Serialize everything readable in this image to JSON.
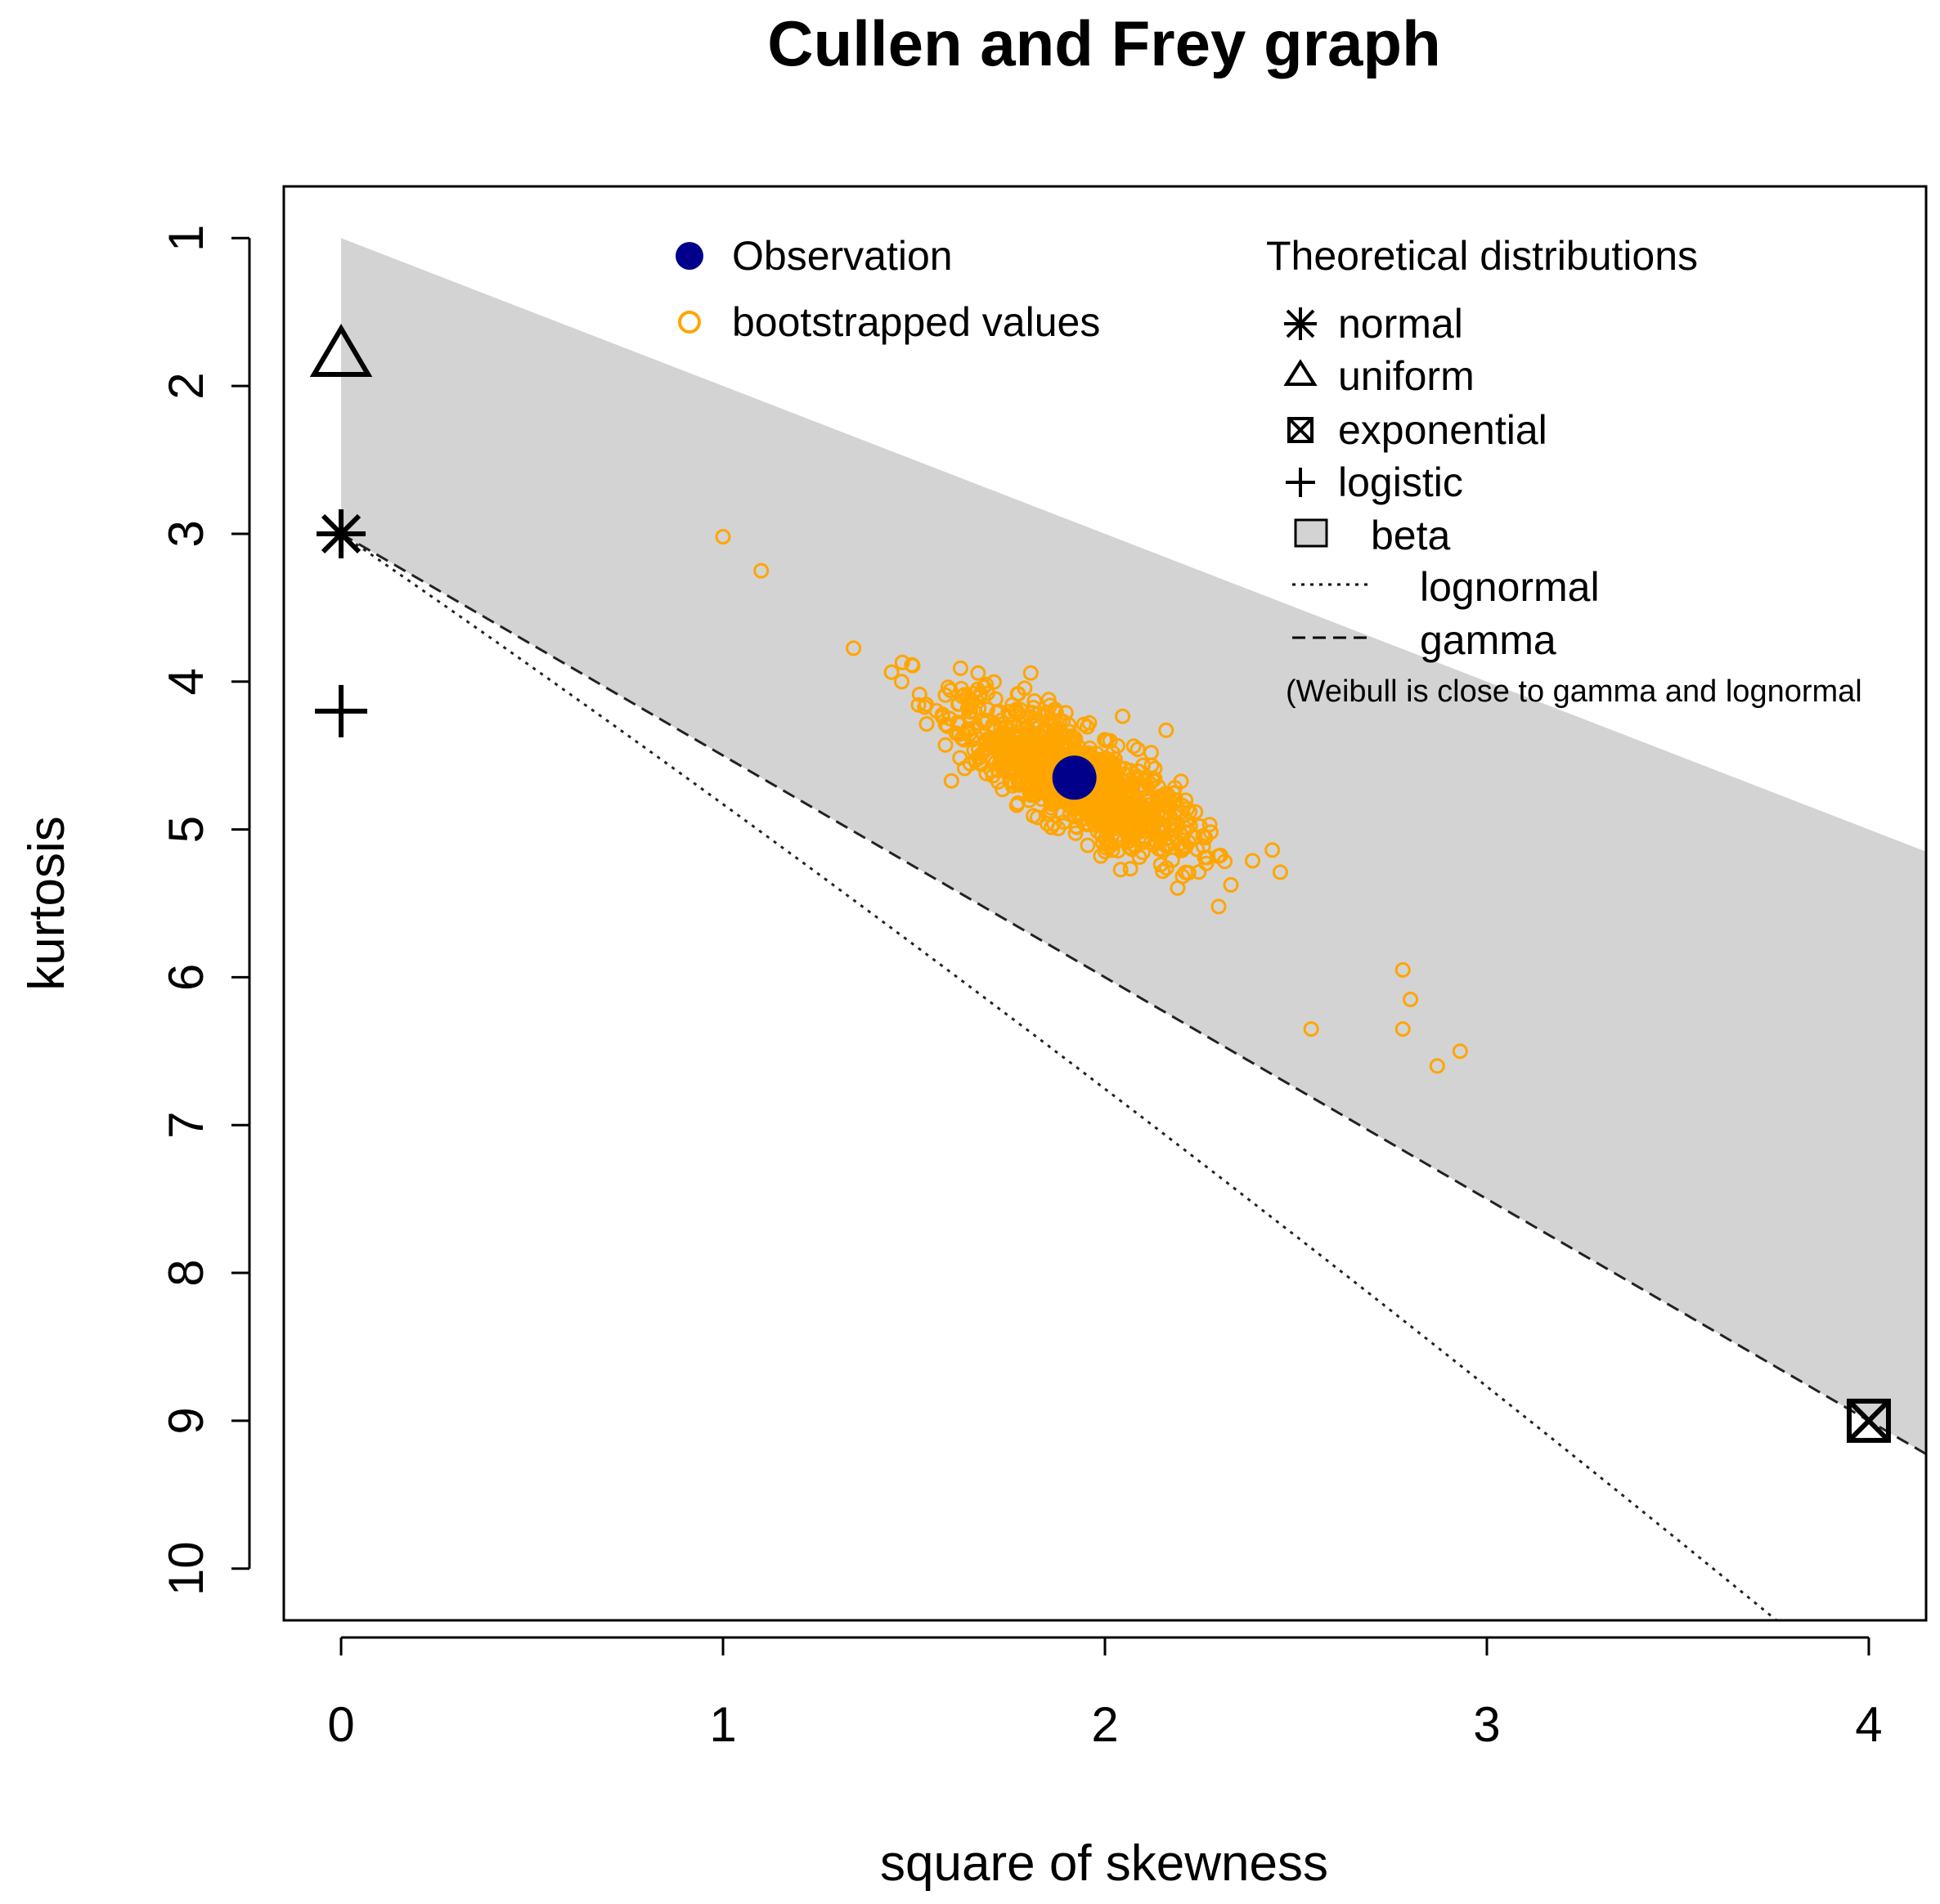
{
  "chart_data": {
    "type": "scatter",
    "title": "Cullen and Frey graph",
    "xlabel": "square of skewness",
    "ylabel": "kurtosis",
    "xlim": [
      -0.15,
      4.15
    ],
    "ylim": [
      10.35,
      0.65
    ],
    "y_axis_reversed": true,
    "x_ticks": [
      0,
      1,
      2,
      3,
      4
    ],
    "y_ticks": [
      1,
      2,
      3,
      4,
      5,
      6,
      7,
      8,
      9,
      10
    ],
    "observation": {
      "label": "Observation",
      "skewness_sq": 1.92,
      "kurtosis": 4.65,
      "color": "#00008b"
    },
    "bootstrap": {
      "label": "bootstrapped values",
      "color": "#ffa500",
      "n_points": 1000,
      "center_skewness_sq": 1.92,
      "center_kurtosis": 4.65,
      "slope": 1.9,
      "spread_along": 0.3,
      "spread_across": 0.09,
      "outliers": [
        [
          1.0,
          3.02
        ],
        [
          1.1,
          3.25
        ],
        [
          2.54,
          6.35
        ],
        [
          2.78,
          6.35
        ],
        [
          2.87,
          6.6
        ],
        [
          2.93,
          6.5
        ],
        [
          2.8,
          6.15
        ],
        [
          2.78,
          5.95
        ]
      ]
    },
    "theoretical_points": [
      {
        "name": "normal",
        "skewness_sq": 0,
        "kurtosis": 3,
        "symbol": "asterisk"
      },
      {
        "name": "uniform",
        "skewness_sq": 0,
        "kurtosis": 1.8,
        "symbol": "triangle"
      },
      {
        "name": "exponential",
        "skewness_sq": 4,
        "kurtosis": 9,
        "symbol": "boxed-x"
      },
      {
        "name": "logistic",
        "skewness_sq": 0,
        "kurtosis": 4.2,
        "symbol": "plus"
      }
    ],
    "beta_region": {
      "name": "beta",
      "lower_bound": "kurtosis = 1 + skewness_sq",
      "upper_bound": "kurtosis = 3 + 1.5 * skewness_sq",
      "color": "#d3d3d3"
    },
    "curves": [
      {
        "name": "lognormal",
        "style": "dotted"
      },
      {
        "name": "gamma",
        "style": "dashed",
        "equation": "kurtosis = 3 + 1.5 * skewness_sq"
      }
    ],
    "legend": {
      "observed_entries": [
        "Observation",
        "bootstrapped values"
      ],
      "theoretical_title": "Theoretical distributions",
      "theoretical_entries": [
        "normal",
        "uniform",
        "exponential",
        "logistic",
        "beta",
        "lognormal",
        "gamma"
      ],
      "note": "(Weibull is close to gamma and lognormal"
    }
  }
}
